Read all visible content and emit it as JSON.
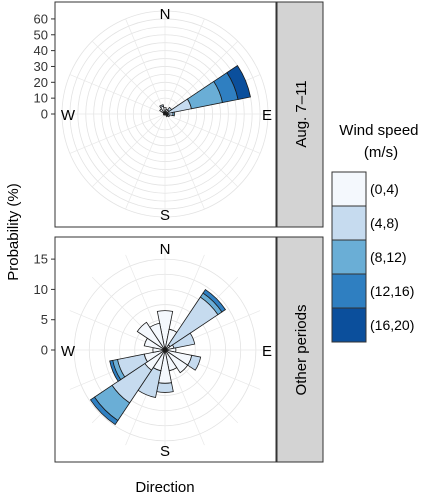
{
  "chart_data": {
    "type": "windrose",
    "xlabel": "Direction",
    "ylabel": "Probability (%)",
    "directions": [
      "N",
      "E",
      "S",
      "W"
    ],
    "speed_bins": [
      "(0,4)",
      "(4,8)",
      "(8,12)",
      "(12,16)",
      "(16,20)"
    ],
    "colors": [
      "#f4f8fd",
      "#c6dbef",
      "#6aaed6",
      "#2f7fc1",
      "#0b4f9c"
    ],
    "legend": {
      "title": "Wind speed\n(m/s)",
      "position": "right"
    },
    "grid": true,
    "panels": [
      {
        "label": "Aug. 7–11",
        "ylim": [
          0,
          65
        ],
        "yticks": [
          0,
          10,
          20,
          30,
          40,
          50,
          60
        ],
        "sectors": [
          {
            "angle": 67.5,
            "values": [
              2,
              15,
              20,
              10,
              8
            ]
          },
          {
            "angle": 90,
            "values": [
              2,
              3,
              1,
              0,
              0
            ]
          },
          {
            "angle": 112.5,
            "values": [
              2,
              1,
              0,
              0,
              0
            ]
          },
          {
            "angle": 135,
            "values": [
              2,
              0,
              0,
              0,
              0
            ]
          },
          {
            "angle": 225,
            "values": [
              1,
              0,
              0,
              0,
              0
            ]
          },
          {
            "angle": 270,
            "values": [
              1,
              0,
              0,
              0,
              0
            ]
          },
          {
            "angle": 315,
            "values": [
              4,
              0,
              0,
              0,
              0
            ]
          },
          {
            "angle": 337.5,
            "values": [
              5,
              1,
              0,
              0,
              0
            ]
          },
          {
            "angle": 0,
            "values": [
              4,
              0,
              0,
              0,
              0
            ]
          },
          {
            "angle": 22.5,
            "values": [
              3,
              0,
              0,
              0,
              0
            ]
          },
          {
            "angle": 45,
            "values": [
              3,
              2,
              0,
              0,
              0
            ]
          }
        ]
      },
      {
        "label": "Other periods",
        "ylim": [
          0,
          17
        ],
        "yticks": [
          0,
          5,
          10,
          15
        ],
        "sectors": [
          {
            "angle": 0,
            "values": [
              6.5,
              0,
              0,
              0,
              0
            ]
          },
          {
            "angle": 22.5,
            "values": [
              3.5,
              0,
              0,
              0,
              0
            ]
          },
          {
            "angle": 45,
            "values": [
              1.0,
              9.5,
              0.8,
              0.7,
              0
            ]
          },
          {
            "angle": 67.5,
            "values": [
              1.5,
              3.5,
              0,
              0,
              0
            ]
          },
          {
            "angle": 90,
            "values": [
              1.8,
              0,
              0,
              0,
              0
            ]
          },
          {
            "angle": 112.5,
            "values": [
              4.5,
              1.5,
              0,
              0,
              0
            ]
          },
          {
            "angle": 135,
            "values": [
              4.5,
              0,
              0,
              0,
              0
            ]
          },
          {
            "angle": 157.5,
            "values": [
              3.5,
              0,
              0,
              0,
              0
            ]
          },
          {
            "angle": 180,
            "values": [
              5.5,
              1.5,
              0,
              0,
              0
            ]
          },
          {
            "angle": 202.5,
            "values": [
              3.5,
              4.5,
              0,
              0,
              0
            ]
          },
          {
            "angle": 225,
            "values": [
              4.0,
              6.5,
              3.5,
              0.8,
              0
            ]
          },
          {
            "angle": 247.5,
            "values": [
              3.5,
              4.5,
              0.8,
              0.5,
              0
            ]
          },
          {
            "angle": 270,
            "values": [
              2.0,
              0,
              0,
              0,
              0
            ]
          },
          {
            "angle": 292.5,
            "values": [
              3.5,
              0,
              0,
              0,
              0
            ]
          },
          {
            "angle": 315,
            "values": [
              5.5,
              0,
              0,
              0,
              0
            ]
          },
          {
            "angle": 337.5,
            "values": [
              4.5,
              0,
              0,
              0,
              0
            ]
          }
        ]
      }
    ]
  }
}
